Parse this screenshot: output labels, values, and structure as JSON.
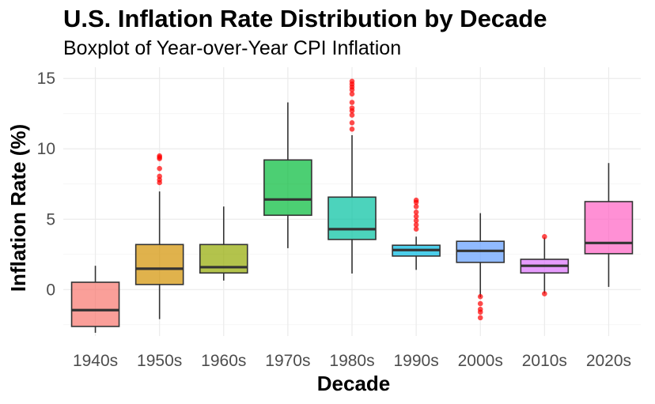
{
  "chart_data": {
    "type": "boxplot",
    "title": "U.S. Inflation Rate Distribution by Decade",
    "subtitle": "Boxplot of Year-over-Year CPI Inflation",
    "xlabel": "Decade",
    "ylabel": "Inflation Rate (%)",
    "ylim": [
      -3.3,
      15.8
    ],
    "yticks": [
      0,
      5,
      10,
      15
    ],
    "grid": true,
    "legend": "none",
    "outlier_color": "#FF0000",
    "categories": [
      "1940s",
      "1950s",
      "1960s",
      "1970s",
      "1980s",
      "1990s",
      "2000s",
      "2010s",
      "2020s"
    ],
    "colors": [
      "#F8766D",
      "#D39200",
      "#93AA00",
      "#00BA38",
      "#00C19F",
      "#00B9E3",
      "#619CFF",
      "#DB72FB",
      "#FF61C3"
    ],
    "boxes": [
      {
        "whisker_low": -3.07,
        "q1": -2.62,
        "median": -1.46,
        "q3": 0.52,
        "whisker_high": 1.69,
        "outliers": []
      },
      {
        "whisker_low": -2.1,
        "q1": 0.36,
        "median": 1.48,
        "q3": 3.2,
        "whisker_high": 6.97,
        "outliers": [
          7.6,
          7.8,
          8.05,
          8.6,
          9.3,
          9.4,
          9.5
        ]
      },
      {
        "whisker_low": 0.64,
        "q1": 1.18,
        "median": 1.59,
        "q3": 3.2,
        "whisker_high": 5.9,
        "outliers": []
      },
      {
        "whisker_low": 2.94,
        "q1": 5.28,
        "median": 6.4,
        "q3": 9.21,
        "whisker_high": 13.3,
        "outliers": []
      },
      {
        "whisker_low": 1.14,
        "q1": 3.56,
        "median": 4.29,
        "q3": 6.57,
        "whisker_high": 10.97,
        "outliers": [
          11.4,
          11.85,
          12.4,
          12.7,
          12.9,
          13.3,
          13.9,
          14.2,
          14.4,
          14.6,
          14.8
        ]
      },
      {
        "whisker_low": 1.4,
        "q1": 2.38,
        "median": 2.81,
        "q3": 3.15,
        "whisker_high": 3.76,
        "outliers": [
          4.3,
          4.6,
          4.9,
          5.2,
          5.5,
          5.9,
          6.2,
          6.35
        ]
      },
      {
        "whisker_low": -0.54,
        "q1": 1.93,
        "median": 2.75,
        "q3": 3.43,
        "whisker_high": 5.43,
        "outliers": [
          -0.5,
          -1.0,
          -1.4,
          -1.6,
          -2.0
        ]
      },
      {
        "whisker_low": -0.28,
        "q1": 1.18,
        "median": 1.69,
        "q3": 2.15,
        "whisker_high": 3.7,
        "outliers": [
          3.76,
          -0.3
        ]
      },
      {
        "whisker_low": 0.19,
        "q1": 2.55,
        "median": 3.31,
        "q3": 6.25,
        "whisker_high": 8.99,
        "outliers": []
      }
    ]
  }
}
